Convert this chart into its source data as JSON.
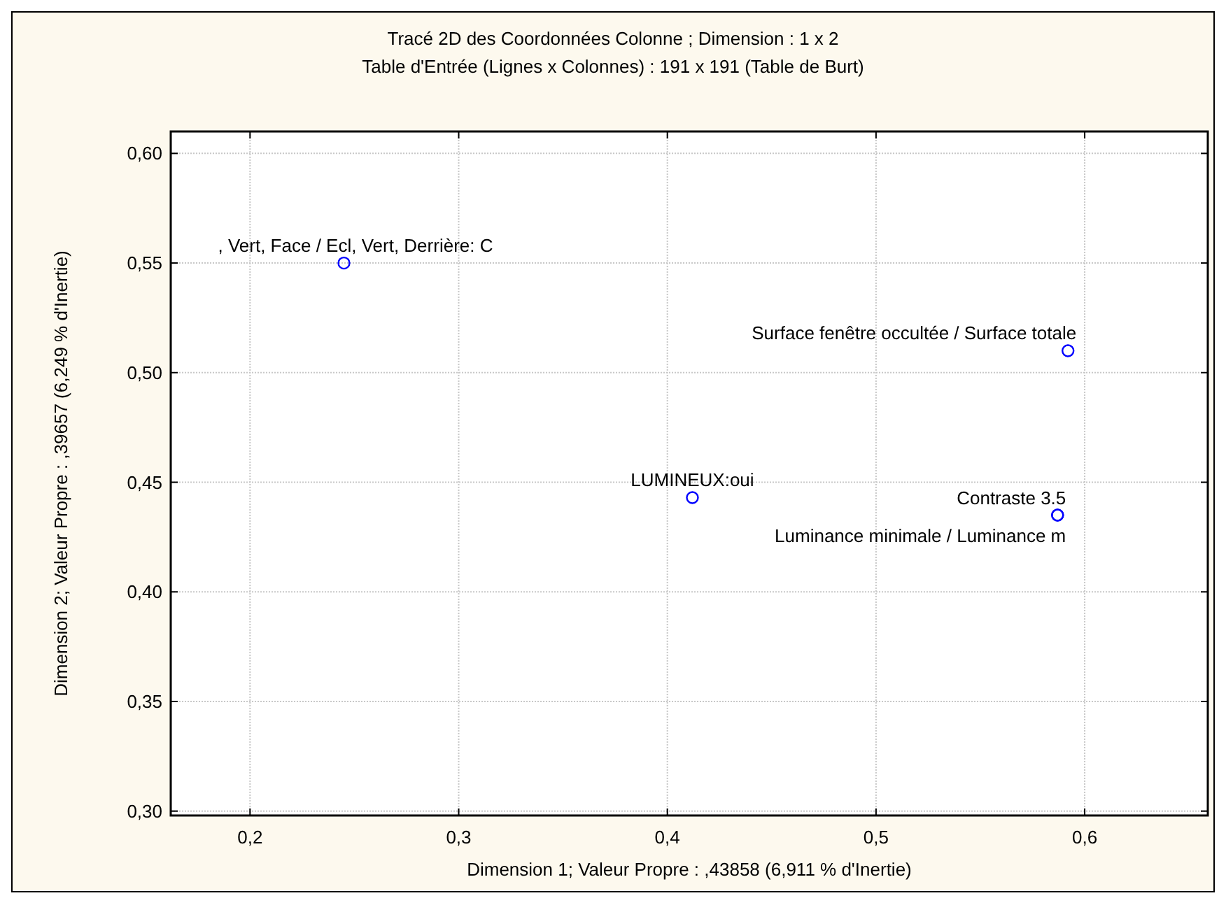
{
  "chart_data": {
    "type": "scatter",
    "title": "Tracé 2D des Coordonnées Colonne ; Dimension :  1 x  2",
    "subtitle": "Table d'Entrée (Lignes x Colonnes) : 191 x 191 (Table de Burt)",
    "xlabel": "Dimension 1; Valeur Propre : ,43858 (6,911  % d'Inertie)",
    "ylabel": "Dimension 2; Valeur Propre : ,39657 (6,249  % d'Inertie)",
    "series": [
      {
        "color": "#0000ff",
        "x": [
          0.245,
          0.592,
          0.412,
          0.587,
          0.587
        ],
        "values": [
          0.55,
          0.51,
          0.443,
          0.435,
          0.435
        ]
      }
    ],
    "marker": "circle",
    "grid": true,
    "xlim": [
      0.162,
      0.659
    ],
    "xticks": [
      {
        "value": 0.2,
        "label": "0,2"
      },
      {
        "value": 0.3,
        "label": "0,3"
      },
      {
        "value": 0.4,
        "label": "0,4"
      },
      {
        "value": 0.5,
        "label": "0,5"
      },
      {
        "value": 0.6,
        "label": "0,6"
      }
    ],
    "ylim": [
      0.298,
      0.61
    ],
    "yticks": [
      {
        "value": 0.3,
        "label": "0,30"
      },
      {
        "value": 0.35,
        "label": "0,35"
      },
      {
        "value": 0.4,
        "label": "0,40"
      },
      {
        "value": 0.45,
        "label": "0,45"
      },
      {
        "value": 0.5,
        "label": "0,50"
      },
      {
        "value": 0.55,
        "label": "0,55"
      },
      {
        "value": 0.6,
        "label": "0,60"
      }
    ],
    "annotations": [
      {
        "text": ", Vert, Face / Ecl, Vert, Derrière: C",
        "x": 0.245,
        "y": 0.55
      },
      {
        "text": "Surface fenêtre occultée / Surface totale",
        "x": 0.592,
        "y": 0.51
      },
      {
        "text": "LUMINEUX:oui",
        "x": 0.412,
        "y": 0.443
      },
      {
        "text": "Contraste 3.5",
        "x": 0.587,
        "y": 0.435
      },
      {
        "text": "Luminance minimale / Luminance m",
        "x": 0.587,
        "y": 0.435
      }
    ]
  }
}
